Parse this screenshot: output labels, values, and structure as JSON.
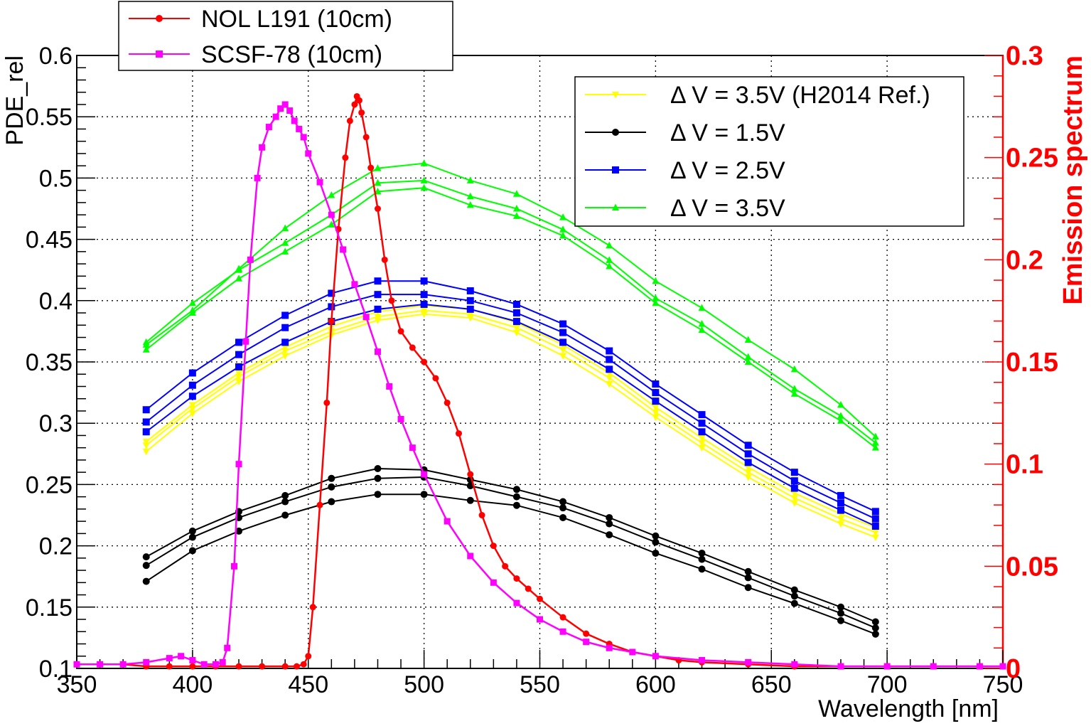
{
  "chart_data": {
    "type": "line",
    "xlabel": "Wavelength [nm]",
    "ylabel": "PDE_rel",
    "ylabel_right": "Emission spectrum",
    "xlim": [
      350,
      750
    ],
    "ylim": [
      0.1,
      0.6
    ],
    "ylim_right": [
      0,
      0.3
    ],
    "x_ticks": [
      "350",
      "400",
      "450",
      "500",
      "550",
      "600",
      "650",
      "700",
      "750"
    ],
    "y_ticks": [
      "0.1",
      "0.15",
      "0.2",
      "0.25",
      "0.3",
      "0.35",
      "0.4",
      "0.45",
      "0.5",
      "0.55",
      "0.6"
    ],
    "y_ticks_right": [
      "0",
      "0.05",
      "0.1",
      "0.15",
      "0.2",
      "0.25",
      "0.3"
    ],
    "grid": true,
    "legend_left": {
      "placement": "top-left-outside",
      "entries": [
        {
          "name": "NOL L191 (10cm)",
          "color": "#ff0000",
          "marker": "circle"
        },
        {
          "name": "SCSF-78 (10cm)",
          "color": "#ff00ff",
          "marker": "square"
        }
      ]
    },
    "legend_right": {
      "placement": "top-right",
      "entries": [
        {
          "name": "Δ V = 3.5V (H2014 Ref.)",
          "color": "#ffff00",
          "marker": "triangle-down"
        },
        {
          "name": "Δ V = 1.5V",
          "color": "#000000",
          "marker": "circle"
        },
        {
          "name": "Δ V = 2.5V",
          "color": "#0000ff",
          "marker": "square"
        },
        {
          "name": "Δ V = 3.5V",
          "color": "#00ff00",
          "marker": "triangle-up"
        }
      ]
    },
    "pde_series": [
      {
        "group": "yellow",
        "color": "#ffff00",
        "marker": "triangle-down",
        "curves": [
          {
            "x": [
              380,
              400,
              420,
              440,
              460,
              480,
              500,
              520,
              540,
              560,
              580,
              600,
              620,
              640,
              660,
              680,
              695
            ],
            "y": [
              0.277,
              0.308,
              0.334,
              0.355,
              0.372,
              0.384,
              0.389,
              0.386,
              0.374,
              0.355,
              0.332,
              0.305,
              0.28,
              0.256,
              0.235,
              0.218,
              0.207
            ]
          },
          {
            "x": [
              380,
              400,
              420,
              440,
              460,
              480,
              500,
              520,
              540,
              560,
              580,
              600,
              620,
              640,
              660,
              680,
              695
            ],
            "y": [
              0.282,
              0.312,
              0.338,
              0.359,
              0.375,
              0.387,
              0.392,
              0.389,
              0.378,
              0.36,
              0.337,
              0.309,
              0.284,
              0.26,
              0.239,
              0.222,
              0.211
            ]
          },
          {
            "x": [
              380,
              400,
              420,
              440,
              460,
              480,
              500,
              520,
              540,
              560,
              580,
              600,
              620,
              640,
              660,
              680,
              695
            ],
            "y": [
              0.285,
              0.315,
              0.341,
              0.362,
              0.379,
              0.391,
              0.396,
              0.393,
              0.382,
              0.364,
              0.341,
              0.313,
              0.288,
              0.264,
              0.243,
              0.226,
              0.215
            ]
          }
        ]
      },
      {
        "group": "blue",
        "color": "#0000ff",
        "marker": "square",
        "curves": [
          {
            "x": [
              380,
              400,
              420,
              440,
              460,
              480,
              500,
              520,
              540,
              560,
              580,
              600,
              620,
              640,
              660,
              680,
              695
            ],
            "y": [
              0.293,
              0.322,
              0.346,
              0.366,
              0.383,
              0.393,
              0.397,
              0.393,
              0.383,
              0.366,
              0.344,
              0.318,
              0.293,
              0.268,
              0.247,
              0.229,
              0.216
            ]
          },
          {
            "x": [
              380,
              400,
              420,
              440,
              460,
              480,
              500,
              520,
              540,
              560,
              580,
              600,
              620,
              640,
              660,
              680,
              695
            ],
            "y": [
              0.301,
              0.331,
              0.356,
              0.378,
              0.395,
              0.405,
              0.405,
              0.4,
              0.39,
              0.374,
              0.352,
              0.325,
              0.3,
              0.275,
              0.253,
              0.235,
              0.222
            ]
          },
          {
            "x": [
              380,
              400,
              420,
              440,
              460,
              480,
              500,
              520,
              540,
              560,
              580,
              600,
              620,
              640,
              660,
              680,
              695
            ],
            "y": [
              0.311,
              0.341,
              0.366,
              0.388,
              0.406,
              0.416,
              0.416,
              0.408,
              0.397,
              0.381,
              0.359,
              0.332,
              0.307,
              0.282,
              0.26,
              0.241,
              0.228
            ]
          }
        ]
      },
      {
        "group": "green",
        "color": "#00ff00",
        "marker": "triangle-up",
        "curves": [
          {
            "x": [
              380,
              400,
              420,
              440,
              460,
              480,
              500,
              520,
              540,
              560,
              580,
              600,
              620,
              640,
              660,
              680,
              695
            ],
            "y": [
              0.36,
              0.39,
              0.418,
              0.44,
              0.462,
              0.489,
              0.492,
              0.478,
              0.469,
              0.453,
              0.428,
              0.398,
              0.376,
              0.35,
              0.324,
              0.302,
              0.28
            ]
          },
          {
            "x": [
              380,
              400,
              420,
              440,
              460,
              480,
              500,
              520,
              540,
              560,
              580,
              600,
              620,
              640,
              660,
              680,
              695
            ],
            "y": [
              0.366,
              0.398,
              0.425,
              0.447,
              0.47,
              0.496,
              0.498,
              0.485,
              0.475,
              0.458,
              0.433,
              0.402,
              0.381,
              0.354,
              0.328,
              0.306,
              0.284
            ]
          },
          {
            "x": [
              380,
              400,
              420,
              440,
              460,
              480,
              500,
              520,
              540,
              560,
              580,
              600,
              620,
              640,
              660,
              680,
              695
            ],
            "y": [
              0.364,
              0.392,
              0.426,
              0.459,
              0.486,
              0.508,
              0.512,
              0.498,
              0.487,
              0.468,
              0.445,
              0.416,
              0.394,
              0.368,
              0.344,
              0.315,
              0.289
            ]
          }
        ]
      },
      {
        "group": "black",
        "color": "#000000",
        "marker": "circle",
        "curves": [
          {
            "x": [
              380,
              400,
              420,
              440,
              460,
              480,
              500,
              520,
              540,
              560,
              580,
              600,
              620,
              640,
              660,
              680,
              695
            ],
            "y": [
              0.171,
              0.196,
              0.212,
              0.225,
              0.236,
              0.242,
              0.242,
              0.237,
              0.233,
              0.223,
              0.209,
              0.194,
              0.181,
              0.166,
              0.153,
              0.139,
              0.128
            ]
          },
          {
            "x": [
              380,
              400,
              420,
              440,
              460,
              480,
              500,
              520,
              540,
              560,
              580,
              600,
              620,
              640,
              660,
              680,
              695
            ],
            "y": [
              0.184,
              0.207,
              0.223,
              0.236,
              0.248,
              0.255,
              0.256,
              0.249,
              0.24,
              0.231,
              0.218,
              0.203,
              0.189,
              0.174,
              0.159,
              0.145,
              0.133
            ]
          },
          {
            "x": [
              380,
              400,
              420,
              440,
              460,
              480,
              500,
              520,
              540,
              560,
              580,
              600,
              620,
              640,
              660,
              680,
              695
            ],
            "y": [
              0.191,
              0.212,
              0.228,
              0.241,
              0.255,
              0.263,
              0.262,
              0.254,
              0.246,
              0.236,
              0.223,
              0.208,
              0.194,
              0.179,
              0.164,
              0.15,
              0.138
            ]
          }
        ]
      }
    ],
    "emission_series": [
      {
        "name": "NOL L191 (10cm)",
        "color": "#ff0000",
        "marker": "circle",
        "x": [
          350,
          360,
          370,
          380,
          390,
          400,
          410,
          420,
          430,
          440,
          445,
          448,
          450,
          452,
          455,
          458,
          460,
          463,
          466,
          468,
          470,
          471,
          472,
          473,
          475,
          477,
          480,
          483,
          486,
          490,
          495,
          500,
          505,
          510,
          515,
          520,
          525,
          530,
          535,
          540,
          545,
          550,
          560,
          570,
          580,
          590,
          600,
          610,
          620,
          640,
          660,
          680,
          700,
          720,
          740,
          750
        ],
        "y": [
          0.002,
          0.002,
          0.002,
          0.001,
          0.001,
          0.001,
          0.001,
          0.001,
          0.001,
          0.001,
          0.001,
          0.002,
          0.006,
          0.03,
          0.08,
          0.13,
          0.17,
          0.215,
          0.25,
          0.268,
          0.276,
          0.28,
          0.278,
          0.272,
          0.26,
          0.245,
          0.225,
          0.2,
          0.18,
          0.165,
          0.157,
          0.15,
          0.142,
          0.13,
          0.115,
          0.095,
          0.075,
          0.06,
          0.05,
          0.044,
          0.039,
          0.034,
          0.025,
          0.017,
          0.012,
          0.008,
          0.006,
          0.004,
          0.003,
          0.002,
          0.001,
          0.001,
          0.001,
          0.001,
          0.001,
          0.001
        ]
      },
      {
        "name": "SCSF-78 (10cm)",
        "color": "#ff00ff",
        "marker": "square",
        "x": [
          350,
          360,
          370,
          380,
          390,
          395,
          400,
          405,
          410,
          413,
          415,
          418,
          420,
          423,
          425,
          428,
          430,
          433,
          436,
          438,
          440,
          442,
          444,
          446,
          448,
          450,
          455,
          460,
          465,
          470,
          475,
          480,
          485,
          490,
          495,
          500,
          510,
          520,
          530,
          540,
          550,
          560,
          570,
          580,
          590,
          600,
          620,
          640,
          660,
          680,
          700,
          720,
          740,
          750
        ],
        "y": [
          0.002,
          0.002,
          0.002,
          0.003,
          0.005,
          0.006,
          0.004,
          0.002,
          0.002,
          0.003,
          0.01,
          0.05,
          0.1,
          0.16,
          0.2,
          0.24,
          0.255,
          0.265,
          0.27,
          0.274,
          0.276,
          0.273,
          0.268,
          0.264,
          0.26,
          0.252,
          0.238,
          0.222,
          0.205,
          0.188,
          0.172,
          0.155,
          0.138,
          0.122,
          0.108,
          0.095,
          0.072,
          0.055,
          0.042,
          0.032,
          0.024,
          0.018,
          0.013,
          0.01,
          0.008,
          0.006,
          0.004,
          0.003,
          0.002,
          0.001,
          0.001,
          0.001,
          0.001,
          0.001
        ]
      }
    ]
  }
}
